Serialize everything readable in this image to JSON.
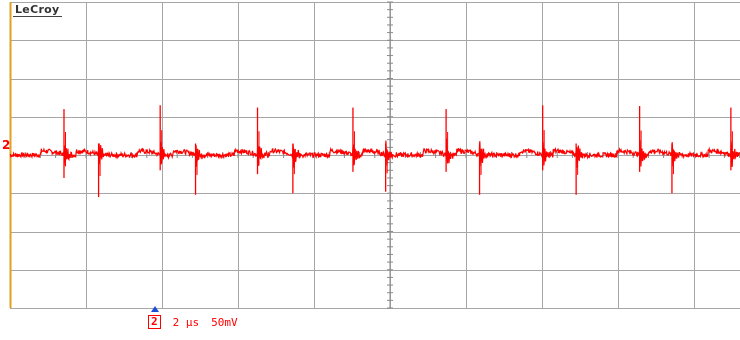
{
  "brand": "LeCroy",
  "channel": {
    "label": "2",
    "color": "#ff0000"
  },
  "footer": {
    "channel_label": "2",
    "timebase": "2 μs",
    "volts_per_div": "50mV"
  },
  "colors": {
    "grid": "#a6a6a6",
    "trace": "#ff0000",
    "ground_axis": "#e0a020",
    "trigger": "#1a4fd6"
  },
  "icons": {
    "trigger_marker": "triangle-up-icon"
  },
  "chart_data": {
    "type": "line",
    "title": "",
    "xlabel": "",
    "ylabel": "",
    "x_unit": "μs",
    "y_unit": "mV",
    "x_per_div": 2,
    "y_per_div": 50,
    "xlim": [
      0,
      19.2
    ],
    "ylim": [
      -200,
      200
    ],
    "grid": true,
    "baseline_mV": 0,
    "switching_period_us": 2.0,
    "series": [
      {
        "color": "#ff0000",
        "events": [
          {
            "t": 1.42,
            "pos_peak": 60,
            "neg_peak": -30
          },
          {
            "t": 2.33,
            "pos_peak": 15,
            "neg_peak": -55
          },
          {
            "t": 3.95,
            "pos_peak": 65,
            "neg_peak": -20
          },
          {
            "t": 4.88,
            "pos_peak": 15,
            "neg_peak": -52
          },
          {
            "t": 6.51,
            "pos_peak": 62,
            "neg_peak": -25
          },
          {
            "t": 7.44,
            "pos_peak": 15,
            "neg_peak": -50
          },
          {
            "t": 9.02,
            "pos_peak": 62,
            "neg_peak": -22
          },
          {
            "t": 9.88,
            "pos_peak": 15,
            "neg_peak": -48
          },
          {
            "t": 11.47,
            "pos_peak": 60,
            "neg_peak": -22
          },
          {
            "t": 12.35,
            "pos_peak": 15,
            "neg_peak": -52
          },
          {
            "t": 14.01,
            "pos_peak": 65,
            "neg_peak": -20
          },
          {
            "t": 14.89,
            "pos_peak": 15,
            "neg_peak": -52
          },
          {
            "t": 16.56,
            "pos_peak": 64,
            "neg_peak": -22
          },
          {
            "t": 17.41,
            "pos_peak": 15,
            "neg_peak": -50
          },
          {
            "t": 18.96,
            "pos_peak": 62,
            "neg_peak": -20
          }
        ]
      }
    ]
  }
}
